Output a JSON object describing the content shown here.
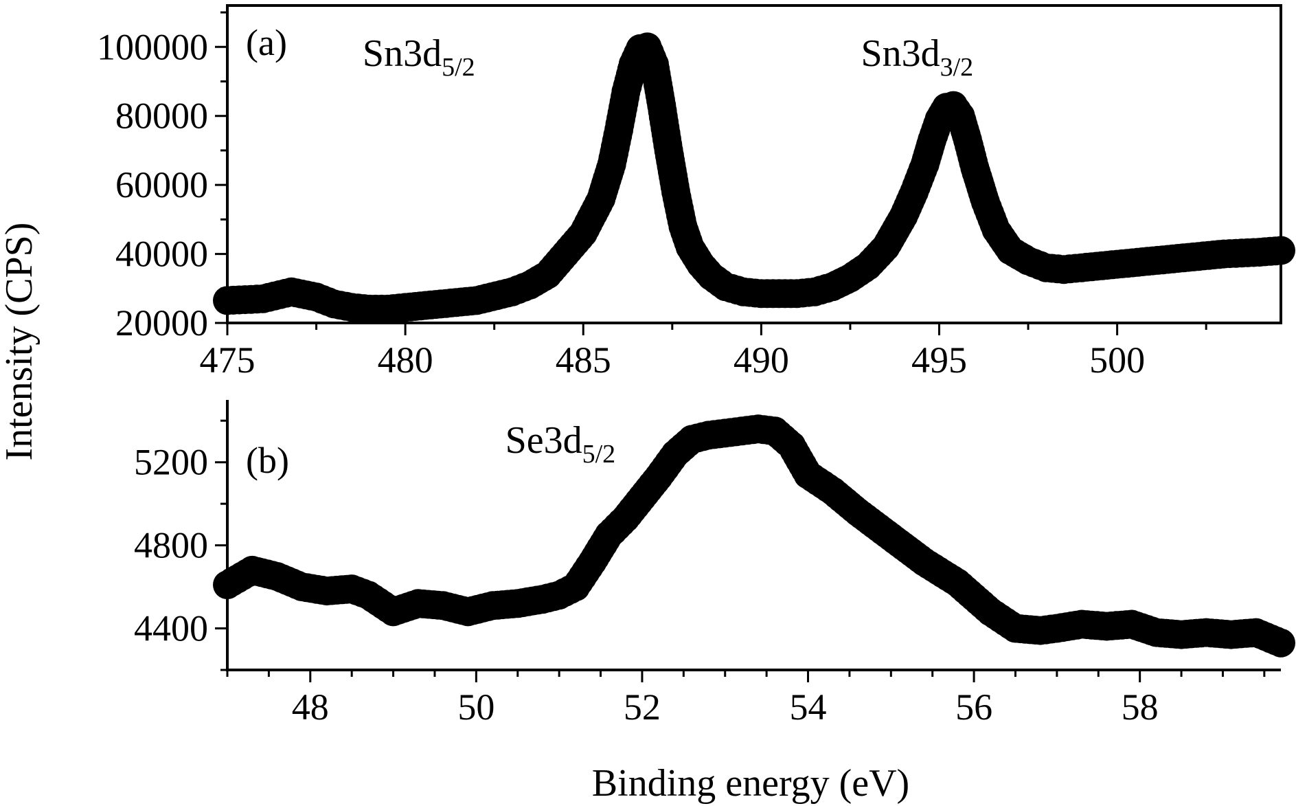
{
  "chart_data": {
    "shared_ylabel": "Intensity (CPS)",
    "shared_xlabel": "Binding energy (eV)",
    "colors": {
      "marker": "#000000",
      "axis": "#000000",
      "background": "#ffffff"
    },
    "panels": [
      {
        "type": "scatter",
        "tag": "(a)",
        "xlim": [
          475,
          504.6
        ],
        "ylim": [
          20000,
          112000
        ],
        "x_ticks": [
          475,
          480,
          485,
          490,
          495,
          500
        ],
        "x_tick_labels": [
          "475",
          "480",
          "485",
          "490",
          "495",
          "500"
        ],
        "x_minor_step": 2.5,
        "y_ticks": [
          20000,
          40000,
          60000,
          80000,
          100000
        ],
        "y_tick_labels": [
          "20000",
          "40000",
          "60000",
          "80000",
          "100000"
        ],
        "y_minor_step": 10000,
        "annotations": [
          {
            "id": "sn3d52",
            "main": "Sn3d",
            "sub": "5/2",
            "x": 478.8,
            "y": 94500
          },
          {
            "id": "sn3d32",
            "main": "Sn3d",
            "sub": "3/2",
            "x": 492.8,
            "y": 94500
          }
        ],
        "series": [
          {
            "name": "Sn 3d",
            "x": [
              475.0,
              476.0,
              476.8,
              477.5,
              478.0,
              478.5,
              479.0,
              479.5,
              480.0,
              481.0,
              482.0,
              483.0,
              483.5,
              484.0,
              484.5,
              485.0,
              485.5,
              485.8,
              486.0,
              486.2,
              486.4,
              486.6,
              486.8,
              487.0,
              487.2,
              487.4,
              487.6,
              487.8,
              488.0,
              488.3,
              488.6,
              489.0,
              489.5,
              490.0,
              490.5,
              491.0,
              491.5,
              492.0,
              492.5,
              493.0,
              493.5,
              494.0,
              494.3,
              494.6,
              494.8,
              495.0,
              495.2,
              495.4,
              495.6,
              495.8,
              496.0,
              496.3,
              496.6,
              497.0,
              497.5,
              498.0,
              498.5,
              499.0,
              500.0,
              501.0,
              502.0,
              503.0,
              504.0,
              504.6
            ],
            "y": [
              26500,
              27000,
              29000,
              27500,
              25500,
              24500,
              24000,
              24000,
              24500,
              25500,
              26500,
              29000,
              31000,
              34000,
              40000,
              46000,
              56000,
              66000,
              76000,
              87000,
              95000,
              99500,
              100000,
              95000,
              83000,
              70000,
              58000,
              48000,
              42000,
              37000,
              33500,
              30500,
              29000,
              28500,
              28500,
              28500,
              29000,
              30500,
              33000,
              36500,
              42000,
              51000,
              58000,
              66000,
              73000,
              79000,
              82500,
              83000,
              80000,
              73000,
              65000,
              55000,
              47000,
              41000,
              38000,
              36000,
              35500,
              36000,
              37000,
              38000,
              39000,
              40000,
              40500,
              41000
            ]
          }
        ]
      },
      {
        "type": "scatter",
        "tag": "(b)",
        "xlim": [
          47.0,
          59.7
        ],
        "ylim": [
          4200,
          5500
        ],
        "x_ticks": [
          48,
          50,
          52,
          54,
          56,
          58
        ],
        "x_tick_labels": [
          "48",
          "50",
          "52",
          "54",
          "56",
          "58"
        ],
        "x_minor_step": 0.5,
        "y_ticks": [
          4400,
          4800,
          5200
        ],
        "y_tick_labels": [
          "4400",
          "4800",
          "5200"
        ],
        "y_minor_step": 200,
        "annotations": [
          {
            "id": "se3d52",
            "main": "Se3d",
            "sub": "5/2",
            "x": 50.35,
            "y": 5245
          }
        ],
        "series": [
          {
            "name": "Se 3d",
            "x": [
              47.0,
              47.3,
              47.6,
              47.9,
              48.2,
              48.5,
              48.7,
              49.0,
              49.3,
              49.6,
              49.9,
              50.2,
              50.5,
              50.8,
              51.0,
              51.2,
              51.4,
              51.6,
              51.8,
              52.0,
              52.2,
              52.4,
              52.6,
              52.8,
              53.0,
              53.2,
              53.4,
              53.6,
              53.8,
              54.0,
              54.3,
              54.6,
              55.0,
              55.4,
              55.8,
              56.2,
              56.5,
              56.8,
              57.0,
              57.3,
              57.6,
              57.9,
              58.2,
              58.5,
              58.8,
              59.1,
              59.4,
              59.7
            ],
            "y": [
              4610,
              4680,
              4650,
              4600,
              4580,
              4590,
              4560,
              4480,
              4520,
              4510,
              4480,
              4510,
              4520,
              4540,
              4560,
              4600,
              4720,
              4850,
              4930,
              5030,
              5130,
              5240,
              5310,
              5330,
              5340,
              5350,
              5360,
              5350,
              5280,
              5140,
              5060,
              4960,
              4840,
              4720,
              4620,
              4480,
              4400,
              4390,
              4400,
              4420,
              4410,
              4420,
              4380,
              4370,
              4380,
              4370,
              4380,
              4330
            ]
          }
        ]
      }
    ]
  }
}
